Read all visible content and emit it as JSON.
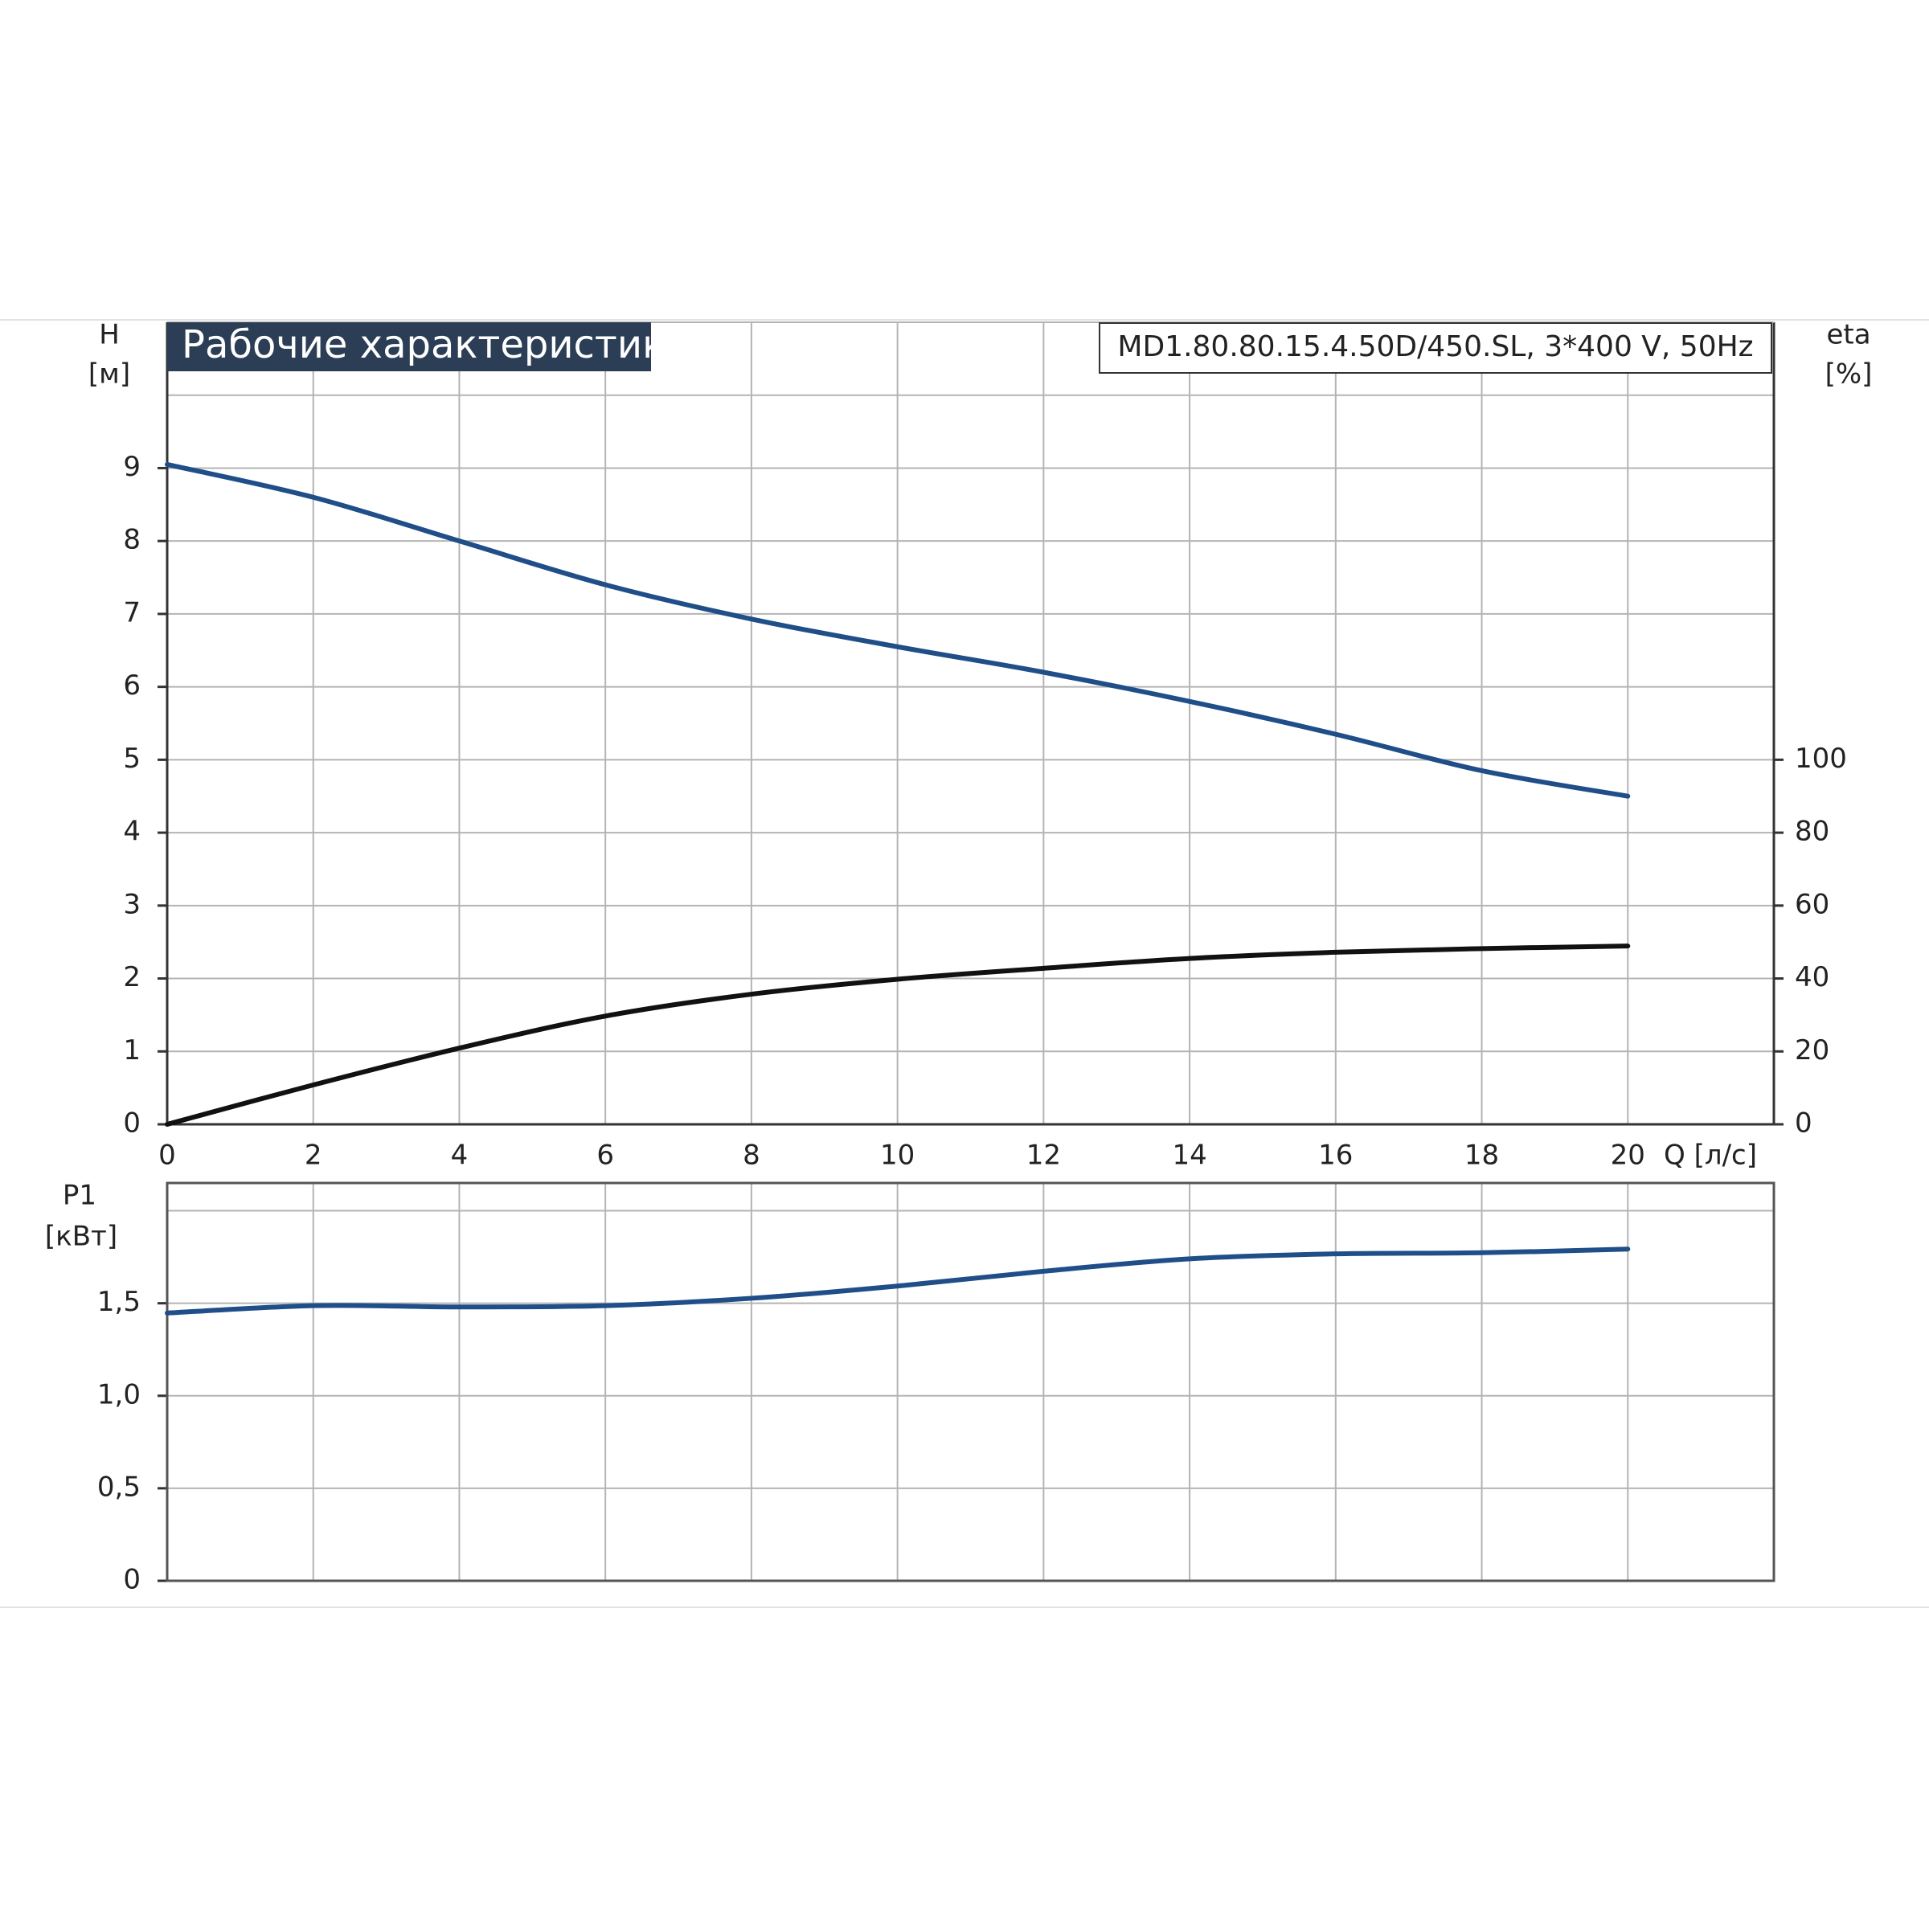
{
  "chart_data": [
    {
      "type": "line",
      "title": "Рабочие характеристики",
      "subtitle": "MD1.80.80.15.4.50D/450.SL, 3*400 V, 50Hz",
      "xlabel": "Q [л/с]",
      "ylabel": "H",
      "yunit": "[м]",
      "y2label": "eta",
      "y2unit": "[%]",
      "x": [
        0,
        2,
        4,
        6,
        8,
        10,
        12,
        14,
        16,
        18,
        20
      ],
      "xlim": [
        0,
        22
      ],
      "xticks": [
        0,
        2,
        4,
        6,
        8,
        10,
        12,
        14,
        16,
        18,
        20
      ],
      "ylim": [
        0,
        11
      ],
      "yticks": [
        0,
        1,
        2,
        3,
        4,
        5,
        6,
        7,
        8,
        9
      ],
      "y2lim": [
        0,
        220
      ],
      "y2ticks": [
        0,
        20,
        40,
        60,
        80,
        100
      ],
      "grid": true,
      "series": [
        {
          "color": "#1f4e89",
          "values": [
            9.05,
            8.6,
            8.0,
            7.4,
            6.93,
            6.55,
            6.2,
            5.8,
            5.35,
            4.85,
            4.5
          ]
        },
        {
          "color": "#111111",
          "axis": "y2",
          "values": [
            0,
            10.8,
            20.9,
            29.7,
            35.7,
            39.8,
            42.8,
            45.5,
            47.2,
            48.2,
            48.9
          ]
        }
      ]
    },
    {
      "type": "line",
      "ylabel": "P1",
      "yunit": "[кВт]",
      "x": [
        0,
        2,
        4,
        6,
        8,
        10,
        12,
        14,
        16,
        18,
        20
      ],
      "xlim": [
        0,
        22
      ],
      "ylim": [
        0,
        2.15
      ],
      "yticks": [
        0,
        {
          "value": 0.5,
          "label": "0,5"
        },
        {
          "value": 1.0,
          "label": "1,0"
        },
        {
          "value": 1.5,
          "label": "1,5"
        }
      ],
      "grid": true,
      "series": [
        {
          "color": "#1f4e89",
          "values": [
            1.447,
            1.487,
            1.48,
            1.487,
            1.527,
            1.593,
            1.673,
            1.74,
            1.767,
            1.773,
            1.793
          ]
        }
      ]
    }
  ]
}
